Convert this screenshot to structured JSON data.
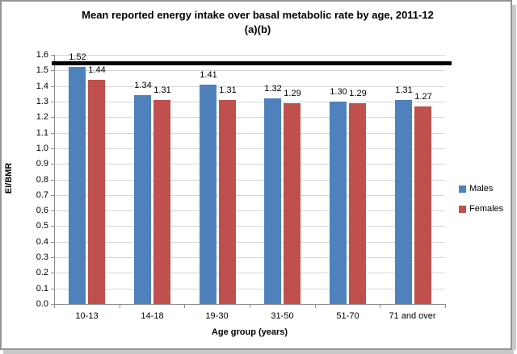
{
  "chart_data": {
    "type": "bar",
    "title": "Mean reported energy intake over basal metabolic rate by age, 2011-12 (a)(b)",
    "title_line1": "Mean reported energy intake over basal metabolic rate by age, 2011-12",
    "title_line2": "(a)(b)",
    "xlabel": "Age group (years)",
    "ylabel": "EI/BMR",
    "categories": [
      "10-13",
      "14-18",
      "19-30",
      "31-50",
      "51-70",
      "71 and over"
    ],
    "series": [
      {
        "name": "Males",
        "color": "#4F81BD",
        "values": [
          1.52,
          1.34,
          1.41,
          1.32,
          1.3,
          1.31
        ]
      },
      {
        "name": "Females",
        "color": "#C0504D",
        "values": [
          1.44,
          1.31,
          1.31,
          1.29,
          1.29,
          1.27
        ]
      }
    ],
    "ylim": [
      0,
      1.6
    ],
    "ytick_step": 0.1,
    "value_label_decimals": 2,
    "grid": true,
    "legend_position": "right",
    "reference_line": {
      "value": 1.55,
      "color": "#000000"
    },
    "colors": {
      "gridline": "#d6d6d6",
      "axis": "#8c8c8c",
      "text": "#000000",
      "frame_border": "#949494"
    }
  }
}
